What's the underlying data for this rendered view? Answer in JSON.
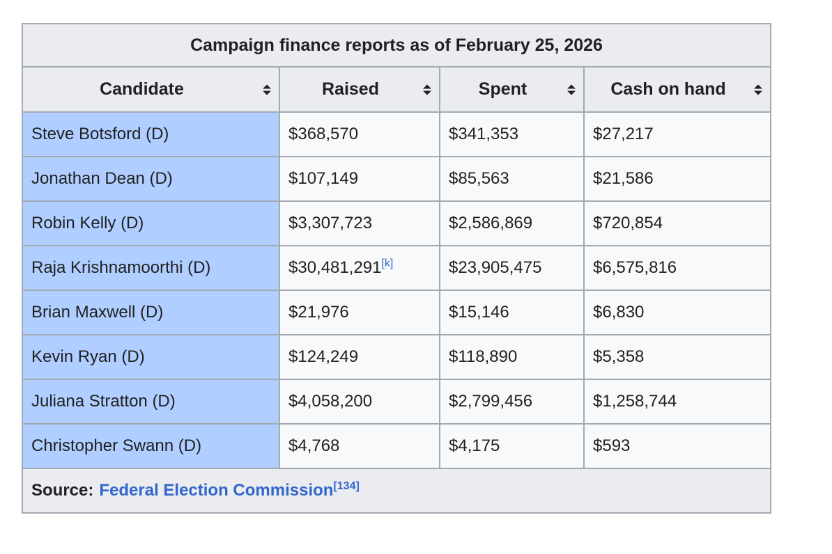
{
  "table": {
    "title": "Campaign finance reports as of February 25, 2026",
    "columns": [
      {
        "label": "Candidate"
      },
      {
        "label": "Raised"
      },
      {
        "label": "Spent"
      },
      {
        "label": "Cash on hand"
      }
    ],
    "rows": [
      {
        "candidate": "Steve Botsford (D)",
        "raised": "$368,570",
        "raised_note": "",
        "spent": "$341,353",
        "cash": "$27,217"
      },
      {
        "candidate": "Jonathan Dean (D)",
        "raised": "$107,149",
        "raised_note": "",
        "spent": "$85,563",
        "cash": "$21,586"
      },
      {
        "candidate": "Robin Kelly (D)",
        "raised": "$3,307,723",
        "raised_note": "",
        "spent": "$2,586,869",
        "cash": "$720,854"
      },
      {
        "candidate": "Raja Krishnamoorthi (D)",
        "raised": "$30,481,291",
        "raised_note": "[k]",
        "spent": "$23,905,475",
        "cash": "$6,575,816"
      },
      {
        "candidate": "Brian Maxwell (D)",
        "raised": "$21,976",
        "raised_note": "",
        "spent": "$15,146",
        "cash": "$6,830"
      },
      {
        "candidate": "Kevin Ryan (D)",
        "raised": "$124,249",
        "raised_note": "",
        "spent": "$118,890",
        "cash": "$5,358"
      },
      {
        "candidate": "Juliana Stratton (D)",
        "raised": "$4,058,200",
        "raised_note": "",
        "spent": "$2,799,456",
        "cash": "$1,258,744"
      },
      {
        "candidate": "Christopher Swann (D)",
        "raised": "$4,768",
        "raised_note": "",
        "spent": "$4,175",
        "cash": "$593"
      }
    ],
    "footer": {
      "prefix": "Source:",
      "link": "Federal Election Commission",
      "ref": "[134]"
    }
  },
  "colors": {
    "header_bg": "#eaecf0",
    "cell_bg": "#f8f9fa",
    "candidate_bg": "#b0ceff",
    "border": "#a2a9b1",
    "link": "#3366cc",
    "text": "#202122"
  }
}
